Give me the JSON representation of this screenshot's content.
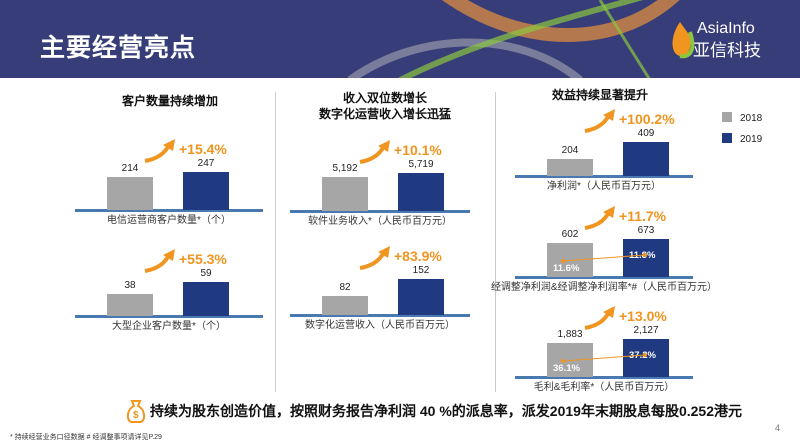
{
  "header": {
    "title": "主要经营亮点",
    "logo_en": "AsiaInfo",
    "logo_cn": "亚信科技"
  },
  "sections": [
    {
      "title": "客户数量持续增加"
    },
    {
      "title": "收入双位数增长\n数字化运营收入增长迅猛"
    },
    {
      "title": "效益持续显著提升"
    }
  ],
  "legend": [
    {
      "label": "2018",
      "color": "#a6a6a6"
    },
    {
      "label": "2019",
      "color": "#1f3a80"
    }
  ],
  "chart_data": [
    {
      "type": "bar",
      "label": "电信运营商客户数量*（个）",
      "categories": [
        "2018",
        "2019"
      ],
      "values": [
        214,
        247
      ],
      "growth": "+15.4%"
    },
    {
      "type": "bar",
      "label": "大型企业客户数量*（个）",
      "categories": [
        "2018",
        "2019"
      ],
      "values": [
        38,
        59
      ],
      "growth": "+55.3%"
    },
    {
      "type": "bar",
      "label": "软件业务收入*（人民币百万元）",
      "categories": [
        "2018",
        "2019"
      ],
      "values_text": [
        "5,192",
        "5,719"
      ],
      "values": [
        5192,
        5719
      ],
      "growth": "+10.1%"
    },
    {
      "type": "bar",
      "label": "数字化运营收入（人民币百万元）",
      "categories": [
        "2018",
        "2019"
      ],
      "values": [
        82,
        152
      ],
      "growth": "+83.9%"
    },
    {
      "type": "bar",
      "label": "净利润*（人民币百万元）",
      "categories": [
        "2018",
        "2019"
      ],
      "values": [
        204,
        409
      ],
      "growth": "+100.2%"
    },
    {
      "type": "bar",
      "label": "经调整净利润&经调整净利润率*#（人民币百万元）",
      "categories": [
        "2018",
        "2019"
      ],
      "values": [
        602,
        673
      ],
      "rates": [
        "11.6%",
        "11.8%"
      ],
      "growth": "+11.7%"
    },
    {
      "type": "bar",
      "label": "毛利&毛利率*（人民币百万元）",
      "categories": [
        "2018",
        "2019"
      ],
      "values_text": [
        "1,883",
        "2,127"
      ],
      "values": [
        1883,
        2127
      ],
      "rates": [
        "36.1%",
        "37.2%"
      ],
      "growth": "+13.0%"
    }
  ],
  "colors": {
    "bar_2018": "#a6a6a6",
    "bar_2019": "#1f3a80",
    "growth": "#ef9520",
    "header": "#373d78"
  },
  "dividend_note": "持续为股东创造价值，按照财务报告净利润 40 %的派息率，派发2019年末期股息每股0.252港元",
  "footnote": "*  持续经营业务口径数据   #  经调整事项请详见P.29",
  "page_number": "4"
}
